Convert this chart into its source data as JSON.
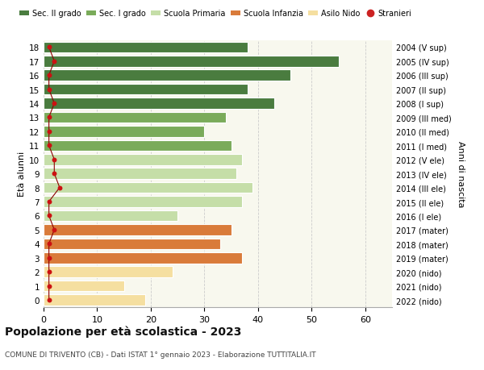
{
  "ages": [
    0,
    1,
    2,
    3,
    4,
    5,
    6,
    7,
    8,
    9,
    10,
    11,
    12,
    13,
    14,
    15,
    16,
    17,
    18
  ],
  "years": [
    "2022 (nido)",
    "2021 (nido)",
    "2020 (nido)",
    "2019 (mater)",
    "2018 (mater)",
    "2017 (mater)",
    "2016 (I ele)",
    "2015 (II ele)",
    "2014 (III ele)",
    "2013 (IV ele)",
    "2012 (V ele)",
    "2011 (I med)",
    "2010 (II med)",
    "2009 (III med)",
    "2008 (I sup)",
    "2007 (II sup)",
    "2006 (III sup)",
    "2005 (IV sup)",
    "2004 (V sup)"
  ],
  "values": [
    19,
    15,
    24,
    37,
    33,
    35,
    25,
    37,
    39,
    36,
    37,
    35,
    30,
    34,
    43,
    38,
    46,
    55,
    38
  ],
  "stranieri": [
    1,
    1,
    1,
    1,
    1,
    2,
    1,
    1,
    3,
    2,
    2,
    1,
    1,
    1,
    2,
    1,
    1,
    2,
    1
  ],
  "bar_colors": [
    "#f5dfa0",
    "#f5dfa0",
    "#f5dfa0",
    "#d97b3a",
    "#d97b3a",
    "#d97b3a",
    "#c5dea8",
    "#c5dea8",
    "#c5dea8",
    "#c5dea8",
    "#c5dea8",
    "#7aab5a",
    "#7aab5a",
    "#7aab5a",
    "#4a7c3f",
    "#4a7c3f",
    "#4a7c3f",
    "#4a7c3f",
    "#4a7c3f"
  ],
  "legend_labels": [
    "Sec. II grado",
    "Sec. I grado",
    "Scuola Primaria",
    "Scuola Infanzia",
    "Asilo Nido",
    "Stranieri"
  ],
  "legend_colors": [
    "#4a7c3f",
    "#7aab5a",
    "#c5dea8",
    "#d97b3a",
    "#f5dfa0",
    "#cc2222"
  ],
  "title": "Popolazione per età scolastica - 2023",
  "subtitle": "COMUNE DI TRIVENTO (CB) - Dati ISTAT 1° gennaio 2023 - Elaborazione TUTTITALIA.IT",
  "ylabel_left": "Età alunni",
  "ylabel_right": "Anni di nascita",
  "xlim": [
    0,
    65
  ],
  "background_color": "#ffffff",
  "plot_bg_color": "#f8f8ee",
  "grid_color": "#cccccc",
  "bar_height": 0.78
}
